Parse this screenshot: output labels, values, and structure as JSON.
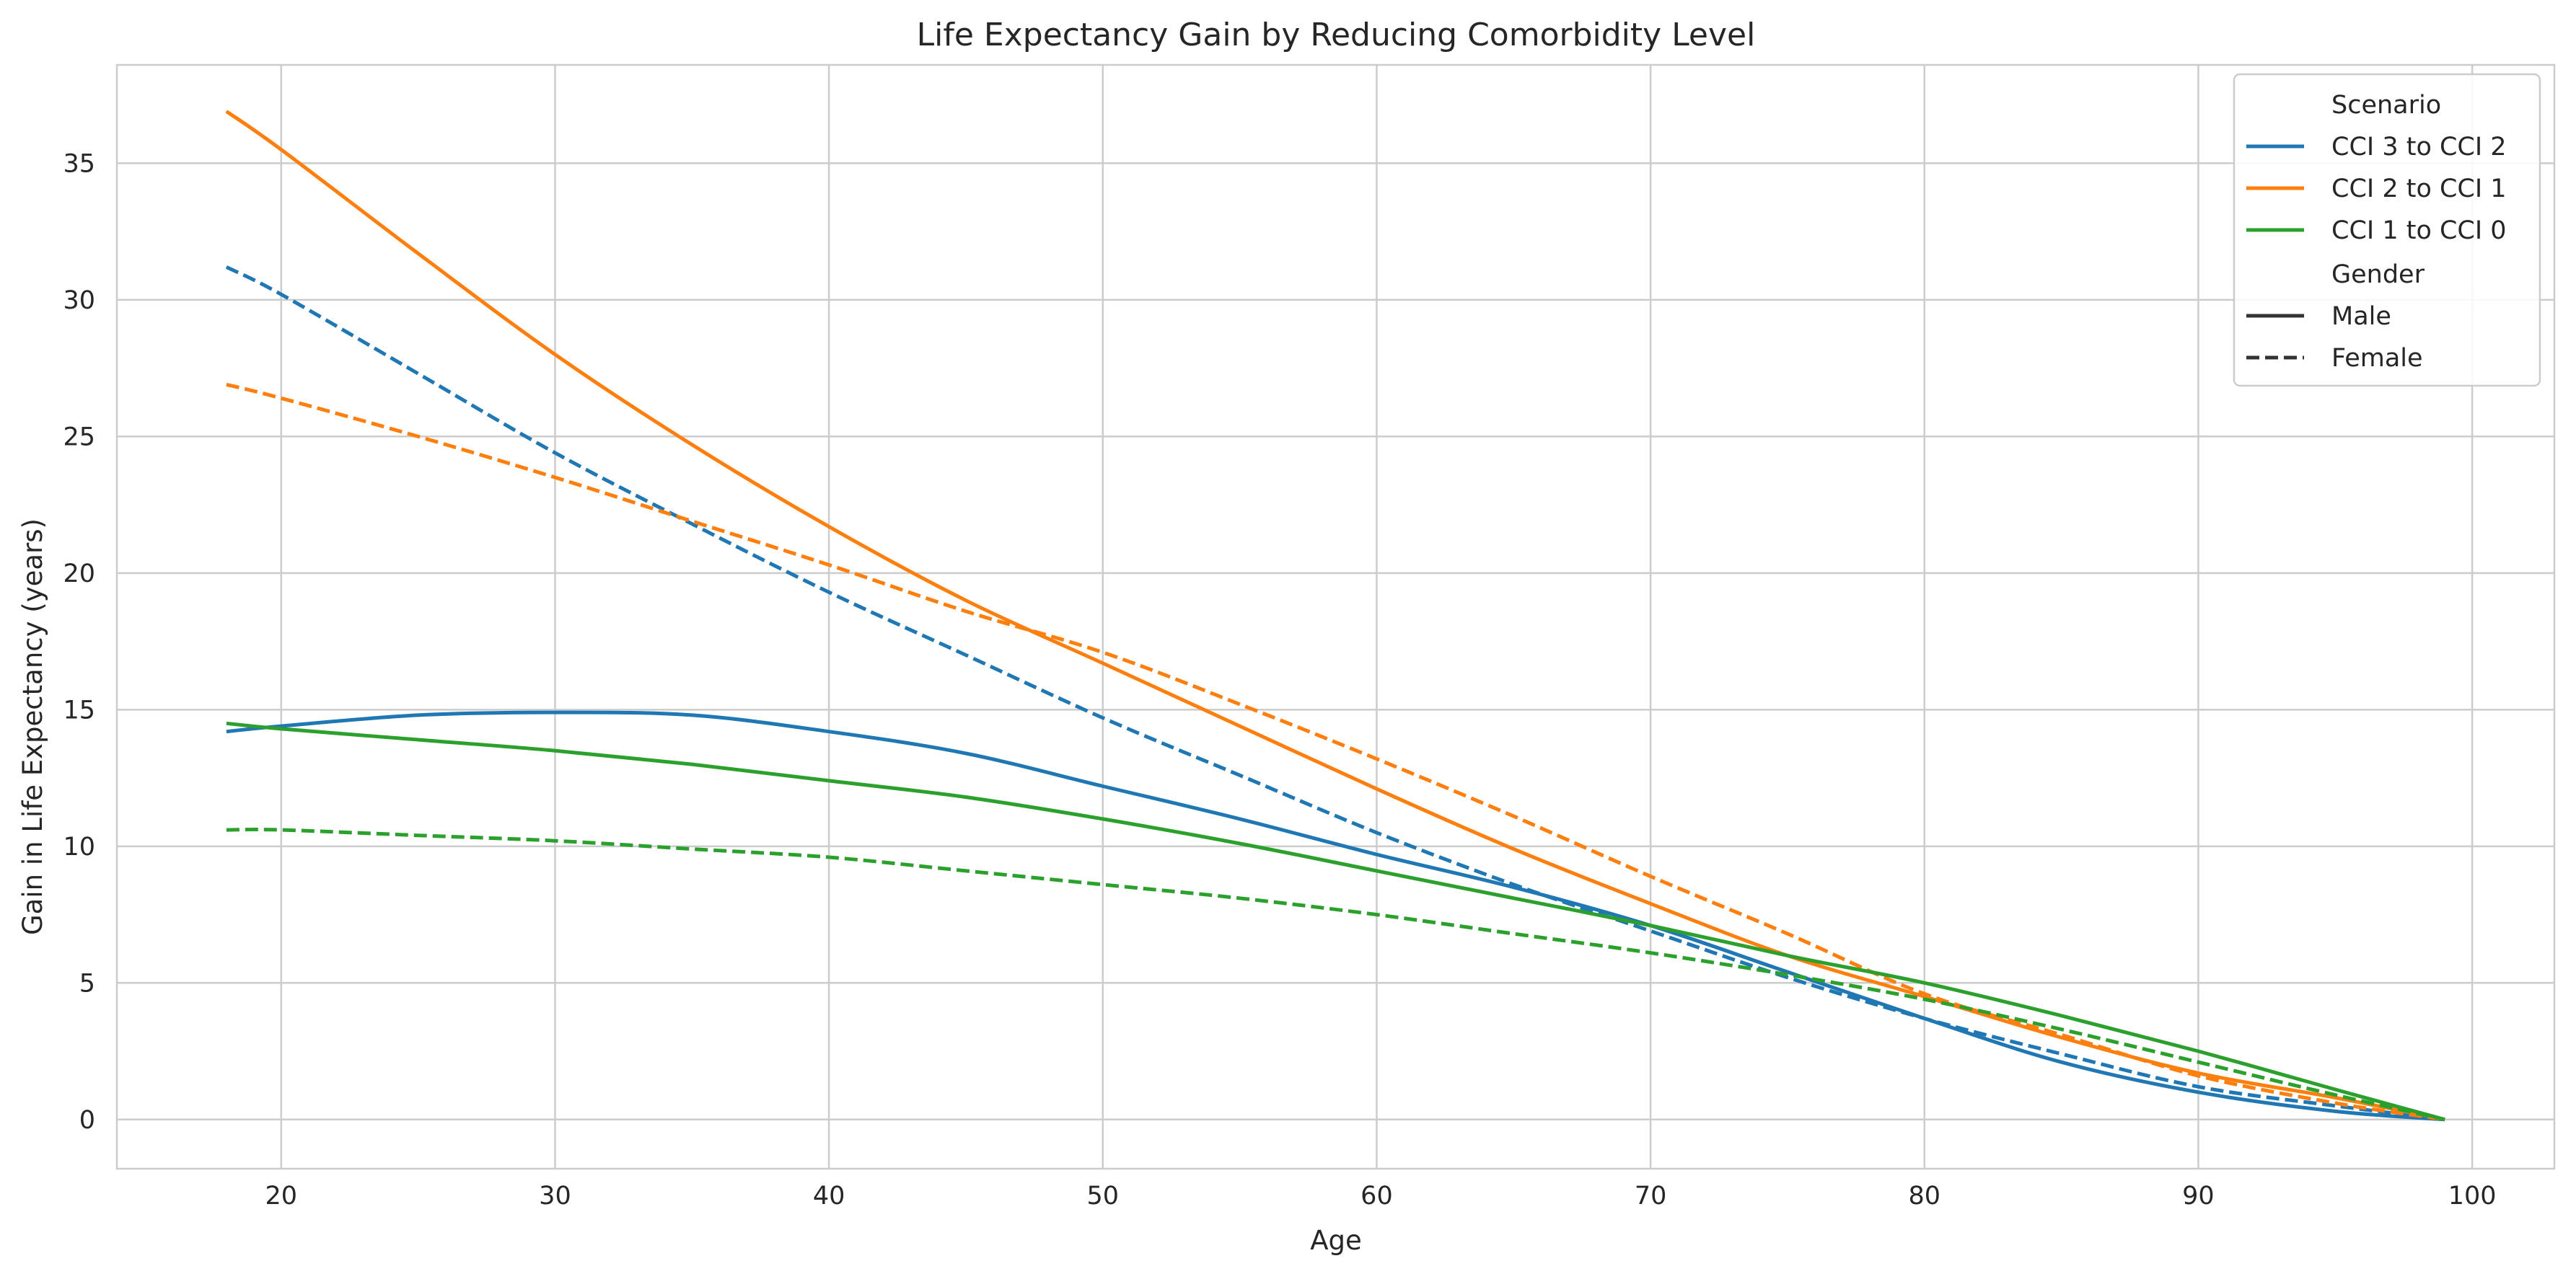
{
  "chart_data": {
    "type": "line",
    "title": "Life Expectancy Gain by Reducing Comorbidity Level",
    "xlabel": "Age",
    "ylabel": "Gain in Life Expectancy (years)",
    "xlim": [
      14,
      103
    ],
    "ylim": [
      -1.8,
      38.6
    ],
    "xticks": [
      20,
      30,
      40,
      50,
      60,
      70,
      80,
      90,
      100
    ],
    "yticks": [
      0,
      5,
      10,
      15,
      20,
      25,
      30,
      35
    ],
    "grid": true,
    "legend": {
      "placement": "top-right",
      "scenario_title": "Scenario",
      "gender_title": "Gender",
      "style_entries": [
        {
          "label": "Male",
          "dash": "solid"
        },
        {
          "label": "Female",
          "dash": "dashed"
        }
      ]
    },
    "x": [
      18,
      20,
      25,
      30,
      35,
      40,
      45,
      50,
      55,
      60,
      65,
      70,
      75,
      80,
      85,
      90,
      95,
      99
    ],
    "series": [
      {
        "name": "CCI 3 to CCI 2",
        "gender": "Male",
        "color": "#1f77b4",
        "dash": "solid",
        "values": [
          14.2,
          14.4,
          14.8,
          14.9,
          14.8,
          14.2,
          13.4,
          12.2,
          11.0,
          9.7,
          8.5,
          7.1,
          5.4,
          3.7,
          2.1,
          1.0,
          0.3,
          0.0
        ]
      },
      {
        "name": "CCI 3 to CCI 2",
        "gender": "Female",
        "color": "#1f77b4",
        "dash": "dashed",
        "values": [
          31.2,
          30.2,
          27.3,
          24.4,
          21.8,
          19.3,
          17.0,
          14.7,
          12.6,
          10.5,
          8.6,
          6.9,
          5.2,
          3.7,
          2.4,
          1.2,
          0.5,
          0.0
        ]
      },
      {
        "name": "CCI 2 to CCI 1",
        "gender": "Male",
        "color": "#ff7f0e",
        "dash": "solid",
        "values": [
          36.9,
          35.5,
          31.7,
          28.0,
          24.7,
          21.7,
          19.0,
          16.7,
          14.4,
          12.1,
          9.9,
          7.9,
          6.0,
          4.5,
          3.0,
          1.7,
          0.8,
          0.0
        ]
      },
      {
        "name": "CCI 2 to CCI 1",
        "gender": "Female",
        "color": "#ff7f0e",
        "dash": "dashed",
        "values": [
          26.9,
          26.4,
          25.0,
          23.5,
          21.9,
          20.3,
          18.6,
          17.1,
          15.2,
          13.2,
          11.1,
          8.9,
          6.8,
          4.6,
          3.1,
          1.6,
          0.6,
          0.0
        ]
      },
      {
        "name": "CCI 1 to CCI 0",
        "gender": "Male",
        "color": "#2ca02c",
        "dash": "solid",
        "values": [
          14.5,
          14.3,
          13.9,
          13.5,
          13.0,
          12.4,
          11.8,
          11.0,
          10.1,
          9.1,
          8.1,
          7.1,
          6.0,
          5.0,
          3.8,
          2.5,
          1.1,
          0.0
        ]
      },
      {
        "name": "CCI 1 to CCI 0",
        "gender": "Female",
        "color": "#2ca02c",
        "dash": "dashed",
        "values": [
          10.6,
          10.6,
          10.4,
          10.2,
          9.9,
          9.6,
          9.1,
          8.6,
          8.1,
          7.5,
          6.8,
          6.1,
          5.3,
          4.4,
          3.3,
          2.1,
          0.9,
          0.0
        ]
      }
    ]
  }
}
